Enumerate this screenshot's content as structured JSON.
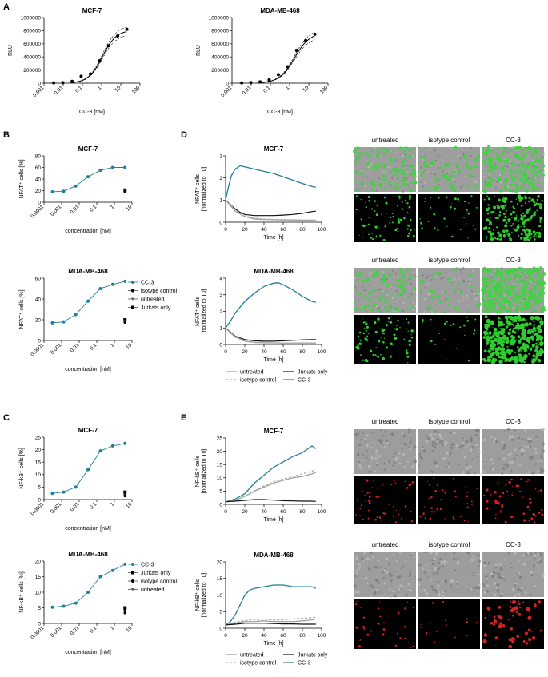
{
  "panel_letters": [
    "A",
    "B",
    "C",
    "D",
    "E"
  ],
  "colors": {
    "cc3": "#1f7f96",
    "untreated": "#999999",
    "isotype": "#aaaaaa",
    "jurkats": "#111111",
    "green": "#2ecc2e",
    "red": "#d42222"
  },
  "legend_B": [
    "CC-3",
    "isotype control",
    "untreated",
    "Jurkats only"
  ],
  "legend_C": [
    "CC-3",
    "Jurkats only",
    "isotype control",
    "untreated"
  ],
  "legend_D": [
    "untreated",
    "Jurkats only",
    "isotype control",
    "CC-3"
  ],
  "legend_E": [
    "untreated",
    "Jurkats only",
    "isotype control",
    "CC-3"
  ],
  "image_labels": [
    "untreated",
    "isotype control",
    "CC-3"
  ],
  "chart_data": [
    {
      "id": "A1",
      "type": "scatter",
      "title": "MCF-7",
      "xlabel": "CC-3 [nM]",
      "ylabel": "RLU",
      "xscale": "log",
      "xlim": [
        0.001,
        100
      ],
      "ylim": [
        0,
        1000000
      ],
      "xticks": [
        "0.001",
        "0.01",
        "0.1",
        "1",
        "10",
        "100"
      ],
      "yticks": [
        "0",
        "200000",
        "400000",
        "600000",
        "800000",
        "1000000"
      ],
      "x": [
        0.0032,
        0.0096,
        0.029,
        0.086,
        0.26,
        0.77,
        2.3,
        6.9,
        20.7
      ],
      "y": [
        5000,
        8000,
        28000,
        105000,
        140000,
        340000,
        570000,
        720000,
        820000
      ],
      "fit": {
        "bottom": 0,
        "top": 810000,
        "ec50": 1.1,
        "hill": 1.2
      },
      "baseline_dotted": true
    },
    {
      "id": "A2",
      "type": "scatter",
      "title": "MDA-MB-468",
      "xlabel": "CC-3 [nM]",
      "ylabel": "RLU",
      "xscale": "log",
      "xlim": [
        0.001,
        100
      ],
      "ylim": [
        0,
        1000000
      ],
      "xticks": [
        "0.001",
        "0.01",
        "0.1",
        "1",
        "10",
        "100"
      ],
      "yticks": [
        "0",
        "200000",
        "400000",
        "600000",
        "800000",
        "1000000"
      ],
      "x": [
        0.0032,
        0.0096,
        0.029,
        0.086,
        0.26,
        0.77,
        2.3,
        6.9,
        20.7
      ],
      "y": [
        4000,
        9000,
        20000,
        50000,
        130000,
        250000,
        500000,
        650000,
        745000
      ],
      "fit": {
        "bottom": 0,
        "top": 770000,
        "ec50": 1.8,
        "hill": 1.1
      },
      "baseline_dotted": true
    },
    {
      "id": "B1",
      "type": "line",
      "title": "MCF-7",
      "ylabel": "NFAT⁺ cells [%]",
      "xlabel": "concentration [nM]",
      "xscale": "log",
      "xlim": [
        0.0001,
        10
      ],
      "ylim": [
        0,
        80
      ],
      "xticks": [
        "0.0001",
        "0.001",
        "0.01",
        "0.1",
        "1",
        "10"
      ],
      "yticks": [
        "0",
        "20",
        "40",
        "60",
        "80"
      ],
      "series": [
        {
          "name": "CC-3",
          "x": [
            0.0003,
            0.0013,
            0.0064,
            0.032,
            0.16,
            0.8,
            4
          ],
          "y": [
            18,
            19,
            28,
            44,
            55,
            60,
            60
          ]
        }
      ],
      "controls": {
        "x": 4,
        "y": [
          21,
          19.5,
          19,
          18
        ]
      }
    },
    {
      "id": "B2",
      "type": "line",
      "title": "MDA-MB-468",
      "ylabel": "NFAT⁺ cells [%]",
      "xlabel": "concentration [nM]",
      "xscale": "log",
      "xlim": [
        0.0001,
        10
      ],
      "ylim": [
        0,
        60
      ],
      "xticks": [
        "0.0001",
        "0.001",
        "0.01",
        "0.1",
        "1",
        "10"
      ],
      "yticks": [
        "0",
        "20",
        "40",
        "60"
      ],
      "series": [
        {
          "name": "CC-3",
          "x": [
            0.0003,
            0.0013,
            0.0064,
            0.032,
            0.16,
            0.8,
            4
          ],
          "y": [
            17,
            18,
            25,
            38,
            50,
            54,
            57
          ]
        }
      ],
      "controls": {
        "x": 4,
        "y": [
          20,
          19,
          18.5,
          17.5
        ]
      }
    },
    {
      "id": "C1",
      "type": "line",
      "title": "MCF-7",
      "ylabel": "NF-kB⁺ cells [%]",
      "xlabel": "concentration [nM]",
      "xscale": "log",
      "xlim": [
        0.0001,
        10
      ],
      "ylim": [
        0,
        25
      ],
      "xticks": [
        "0.0001",
        "0.001",
        "0.01",
        "0.1",
        "1",
        "10"
      ],
      "yticks": [
        "0",
        "5",
        "10",
        "15",
        "20",
        "25"
      ],
      "series": [
        {
          "name": "CC-3",
          "x": [
            0.0003,
            0.0013,
            0.0064,
            0.032,
            0.16,
            0.8,
            4
          ],
          "y": [
            2.5,
            3,
            5,
            12,
            19.5,
            21.5,
            22.5
          ]
        }
      ],
      "controls": {
        "x": 4,
        "y": [
          3,
          2.2,
          1.8,
          1.5
        ]
      }
    },
    {
      "id": "C2",
      "type": "line",
      "title": "MDA-MB-468",
      "ylabel": "NF-kB⁺ cells [%]",
      "xlabel": "concentration [nM]",
      "xscale": "log",
      "xlim": [
        0.0001,
        10
      ],
      "ylim": [
        0,
        20
      ],
      "xticks": [
        "0.0001",
        "0.001",
        "0.01",
        "0.1",
        "1",
        "10"
      ],
      "yticks": [
        "0",
        "5",
        "10",
        "15",
        "20"
      ],
      "series": [
        {
          "name": "CC-3",
          "x": [
            0.0003,
            0.0013,
            0.0064,
            0.032,
            0.16,
            0.8,
            4
          ],
          "y": [
            5.2,
            5.5,
            6.5,
            10,
            15,
            17,
            19
          ]
        }
      ],
      "controls": {
        "x": 4,
        "y": [
          5,
          4.2,
          3.8,
          3.4
        ]
      }
    },
    {
      "id": "D1",
      "type": "line",
      "title": "MCF-7",
      "ylabel": "NFAT⁺ cells [normalized to T0]",
      "xlabel": "Time [h]",
      "xlim": [
        0,
        100
      ],
      "ylim": [
        0,
        3
      ],
      "xticks": [
        "0",
        "20",
        "40",
        "60",
        "80",
        "100"
      ],
      "yticks": [
        "0",
        "1",
        "2",
        "3"
      ],
      "series": [
        {
          "name": "CC-3",
          "x": [
            0,
            3,
            6,
            10,
            15,
            20,
            30,
            40,
            50,
            60,
            70,
            80,
            90,
            94
          ],
          "y": [
            1.0,
            1.6,
            2.1,
            2.4,
            2.55,
            2.5,
            2.4,
            2.3,
            2.2,
            2.05,
            1.9,
            1.75,
            1.62,
            1.58
          ]
        },
        {
          "name": "Jurkats only",
          "x": [
            0,
            5,
            10,
            15,
            20,
            30,
            40,
            50,
            60,
            70,
            80,
            90,
            94
          ],
          "y": [
            1.0,
            0.8,
            0.6,
            0.45,
            0.35,
            0.3,
            0.3,
            0.3,
            0.32,
            0.35,
            0.4,
            0.48,
            0.5
          ]
        },
        {
          "name": "untreated",
          "x": [
            0,
            5,
            10,
            20,
            30,
            40,
            60,
            80,
            94
          ],
          "y": [
            1.0,
            0.75,
            0.5,
            0.25,
            0.15,
            0.12,
            0.1,
            0.09,
            0.08
          ]
        },
        {
          "name": "isotype control",
          "x": [
            0,
            5,
            10,
            20,
            30,
            40,
            60,
            80,
            94
          ],
          "y": [
            1.0,
            0.8,
            0.55,
            0.28,
            0.18,
            0.14,
            0.12,
            0.1,
            0.1
          ]
        }
      ]
    },
    {
      "id": "D2",
      "type": "line",
      "title": "MDA-MB-468",
      "ylabel": "NFAT⁺ cells [normalized to T0]",
      "xlabel": "Time [h]",
      "xlim": [
        0,
        100
      ],
      "ylim": [
        0,
        4
      ],
      "xticks": [
        "0",
        "20",
        "40",
        "60",
        "80",
        "100"
      ],
      "yticks": [
        "0",
        "1",
        "2",
        "3",
        "4"
      ],
      "series": [
        {
          "name": "CC-3",
          "x": [
            0,
            5,
            10,
            20,
            30,
            40,
            50,
            55,
            60,
            70,
            80,
            90,
            94
          ],
          "y": [
            1.0,
            1.4,
            1.9,
            2.6,
            3.1,
            3.5,
            3.7,
            3.72,
            3.6,
            3.3,
            2.9,
            2.6,
            2.55
          ]
        },
        {
          "name": "Jurkats only",
          "x": [
            0,
            5,
            10,
            20,
            30,
            40,
            50,
            60,
            70,
            80,
            90,
            94
          ],
          "y": [
            1.0,
            0.75,
            0.5,
            0.3,
            0.22,
            0.2,
            0.2,
            0.22,
            0.25,
            0.28,
            0.3,
            0.3
          ]
        },
        {
          "name": "untreated",
          "x": [
            0,
            5,
            10,
            20,
            30,
            40,
            60,
            80,
            94
          ],
          "y": [
            1.0,
            0.7,
            0.45,
            0.2,
            0.12,
            0.1,
            0.08,
            0.08,
            0.08
          ]
        },
        {
          "name": "isotype control",
          "x": [
            0,
            5,
            10,
            20,
            30,
            40,
            60,
            80,
            94
          ],
          "y": [
            1.0,
            0.72,
            0.48,
            0.22,
            0.14,
            0.12,
            0.1,
            0.1,
            0.1
          ]
        }
      ]
    },
    {
      "id": "E1",
      "type": "line",
      "title": "MCF-7",
      "ylabel": "NF-kB⁺ cells [normalized to T0]",
      "xlabel": "Time [h]",
      "xlim": [
        0,
        100
      ],
      "ylim": [
        0,
        25
      ],
      "xticks": [
        "0",
        "20",
        "40",
        "60",
        "80",
        "100"
      ],
      "yticks": [
        "0",
        "5",
        "10",
        "15",
        "20",
        "25"
      ],
      "series": [
        {
          "name": "CC-3",
          "x": [
            0,
            10,
            20,
            30,
            40,
            50,
            60,
            70,
            80,
            90,
            94
          ],
          "y": [
            1,
            2,
            4,
            8,
            11,
            14,
            16,
            18,
            19.5,
            22,
            21
          ]
        },
        {
          "name": "isotype control",
          "x": [
            0,
            10,
            20,
            30,
            40,
            50,
            60,
            70,
            80,
            90,
            94
          ],
          "y": [
            1,
            1.5,
            3,
            5,
            7,
            8.5,
            9.5,
            10.5,
            11.5,
            12.5,
            13
          ]
        },
        {
          "name": "untreated",
          "x": [
            0,
            10,
            20,
            30,
            40,
            50,
            60,
            70,
            80,
            90,
            94
          ],
          "y": [
            1,
            1.5,
            3,
            5,
            6.5,
            8,
            9,
            10,
            10.5,
            11.5,
            12
          ]
        },
        {
          "name": "Jurkats only",
          "x": [
            0,
            10,
            20,
            30,
            40,
            50,
            60,
            70,
            80,
            90,
            94
          ],
          "y": [
            1,
            1.2,
            1.5,
            1.8,
            1.8,
            1.6,
            1.4,
            1.3,
            1.2,
            1.2,
            1.1
          ]
        }
      ]
    },
    {
      "id": "E2",
      "type": "line",
      "title": "MDA-MB-468",
      "ylabel": "NF-kB⁺ cells [normalized to T0]",
      "xlabel": "Time [h]",
      "xlim": [
        0,
        100
      ],
      "ylim": [
        0,
        20
      ],
      "xticks": [
        "0",
        "20",
        "40",
        "60",
        "80",
        "100"
      ],
      "yticks": [
        "0",
        "5",
        "10",
        "15",
        "20"
      ],
      "series": [
        {
          "name": "CC-3",
          "x": [
            0,
            5,
            10,
            15,
            20,
            25,
            30,
            40,
            50,
            60,
            70,
            80,
            90,
            94
          ],
          "y": [
            1,
            2,
            4,
            7,
            10,
            11.5,
            12,
            12.5,
            13,
            13,
            12.5,
            12.5,
            12.5,
            12
          ]
        },
        {
          "name": "isotype control",
          "x": [
            0,
            10,
            20,
            30,
            40,
            50,
            60,
            70,
            80,
            90,
            94
          ],
          "y": [
            1,
            1.8,
            2.3,
            2.6,
            2.7,
            2.5,
            2.5,
            2.8,
            3,
            3.2,
            3.3
          ]
        },
        {
          "name": "untreated",
          "x": [
            0,
            10,
            20,
            30,
            40,
            50,
            60,
            70,
            80,
            90,
            94
          ],
          "y": [
            1,
            1.5,
            2,
            2,
            2.2,
            2,
            2,
            2,
            2.2,
            2.5,
            2.8
          ]
        },
        {
          "name": "Jurkats only",
          "x": [
            0,
            10,
            20,
            30,
            40,
            50,
            60,
            70,
            80,
            90,
            94
          ],
          "y": [
            1,
            1.2,
            1.5,
            1.5,
            1.5,
            1.4,
            1.3,
            1.3,
            1.2,
            1.2,
            1.2
          ]
        }
      ]
    }
  ]
}
